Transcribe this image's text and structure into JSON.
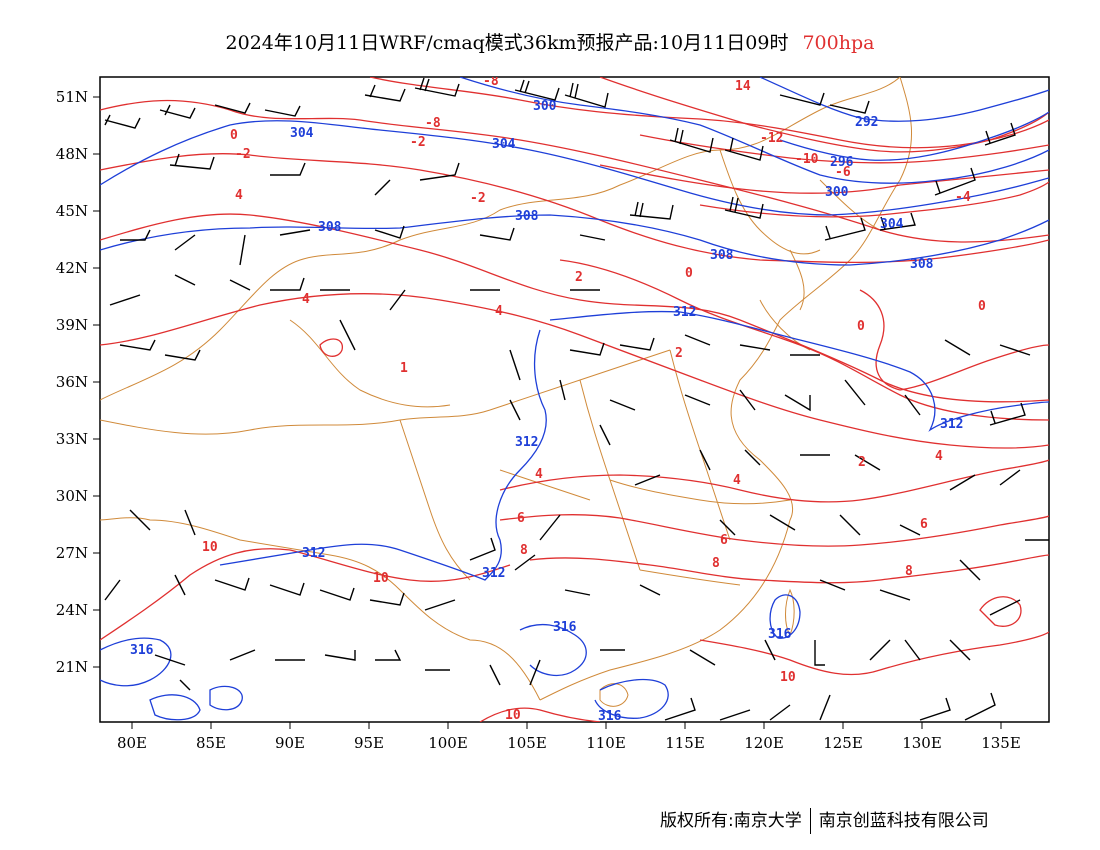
{
  "title": {
    "main": "2024年10月11日WRF/cmaq模式36km预报产品:10月11日09时",
    "level": "700hpa"
  },
  "colors": {
    "temperature": "#e03030",
    "geopotential": "#1e3fd8",
    "border": "#d08a3a",
    "wind": "#000000",
    "frame": "#000000"
  },
  "axes": {
    "lon_ticks": [
      "80E",
      "85E",
      "90E",
      "95E",
      "100E",
      "105E",
      "110E",
      "115E",
      "120E",
      "125E",
      "130E",
      "135E"
    ],
    "lat_ticks": [
      "51N",
      "48N",
      "45N",
      "42N",
      "39N",
      "36N",
      "33N",
      "30N",
      "27N",
      "24N",
      "21N"
    ]
  },
  "temperature_labels": [
    "-8",
    "14",
    "-12",
    "-10",
    "-8",
    "-6",
    "-4",
    "-2",
    "0",
    "2",
    "4",
    "6",
    "8",
    "10",
    "1"
  ],
  "geopotential_labels": [
    "300",
    "304",
    "292",
    "296",
    "308",
    "312",
    "316"
  ],
  "footer": {
    "copyright": "版权所有:南京大学",
    "company": "南京创蓝科技有限公司"
  }
}
